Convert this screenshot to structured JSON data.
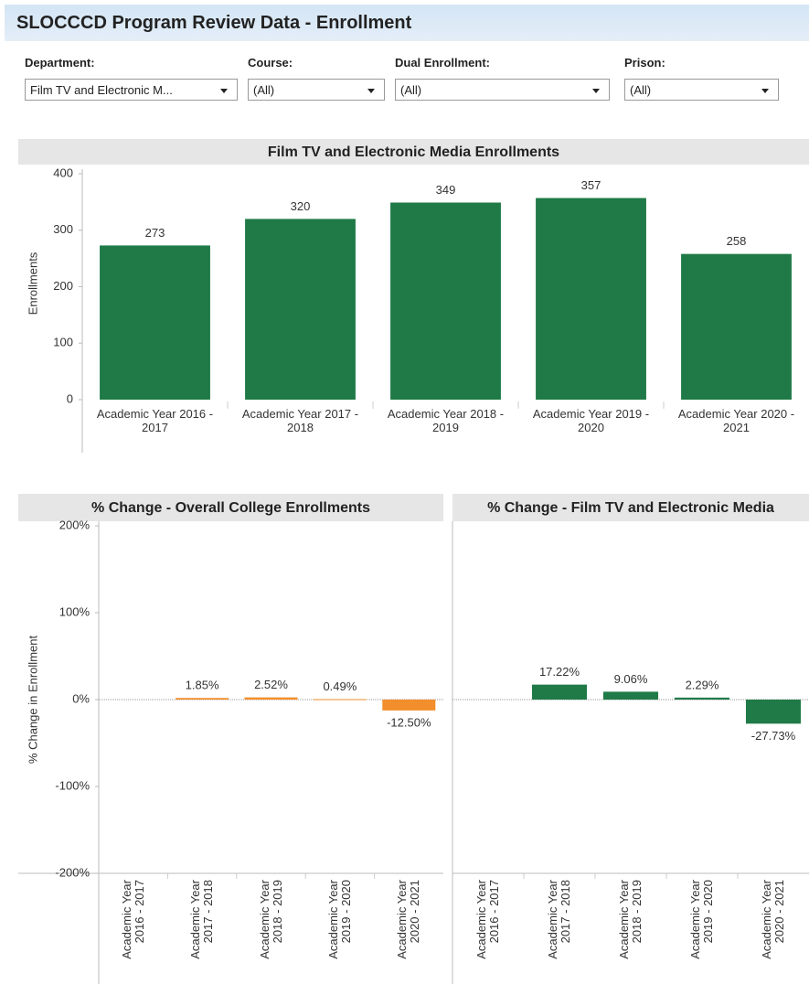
{
  "header": {
    "title": "SLOCCCD Program Review Data - Enrollment"
  },
  "filters": [
    {
      "label": "Department:",
      "value": "Film TV and Electronic M..."
    },
    {
      "label": "Course:",
      "value": "(All)"
    },
    {
      "label": "Dual Enrollment:",
      "value": "(All)"
    },
    {
      "label": "Prison:",
      "value": "(All)"
    }
  ],
  "chart_data": [
    {
      "type": "bar",
      "title": "Film TV and Electronic Media Enrollments",
      "y_label": "Enrollments",
      "categories": [
        "Academic Year 2016 - 2017",
        "Academic Year 2017 - 2018",
        "Academic Year 2018 - 2019",
        "Academic Year 2019 - 2020",
        "Academic Year 2020 - 2021"
      ],
      "values": [
        273,
        320,
        349,
        357,
        258
      ],
      "color": "#1f7a47",
      "ylim": [
        0,
        400
      ],
      "yticks": [
        0,
        100,
        200,
        300,
        400
      ]
    },
    {
      "type": "bar",
      "title": "% Change - Overall College Enrollments",
      "y_label": "% Change in Enrollment",
      "categories": [
        "Academic Year 2016 - 2017",
        "Academic Year 2017 - 2018",
        "Academic Year 2018 - 2019",
        "Academic Year 2019 - 2020",
        "Academic Year 2020 - 2021"
      ],
      "values": [
        null,
        1.85,
        2.52,
        0.49,
        -12.5
      ],
      "value_labels": [
        null,
        "1.85%",
        "2.52%",
        "0.49%",
        "-12.50%"
      ],
      "color": "#f28e2b",
      "ylim": [
        -200,
        200
      ],
      "yticks": [
        {
          "value": -200,
          "label": "-200%"
        },
        {
          "value": -100,
          "label": "-100%"
        },
        {
          "value": 0,
          "label": "0%"
        },
        {
          "value": 100,
          "label": "100%"
        },
        {
          "value": 200,
          "label": "200%"
        }
      ]
    },
    {
      "type": "bar",
      "title": "% Change - Film TV and Electronic Media",
      "categories": [
        "Academic Year 2016 - 2017",
        "Academic Year 2017 - 2018",
        "Academic Year 2018 - 2019",
        "Academic Year 2019 - 2020",
        "Academic Year 2020 - 2021"
      ],
      "values": [
        null,
        17.22,
        9.06,
        2.29,
        -27.73
      ],
      "value_labels": [
        null,
        "17.22%",
        "9.06%",
        "2.29%",
        "-27.73%"
      ],
      "color": "#1f7a47",
      "ylim": [
        -200,
        200
      ]
    }
  ]
}
